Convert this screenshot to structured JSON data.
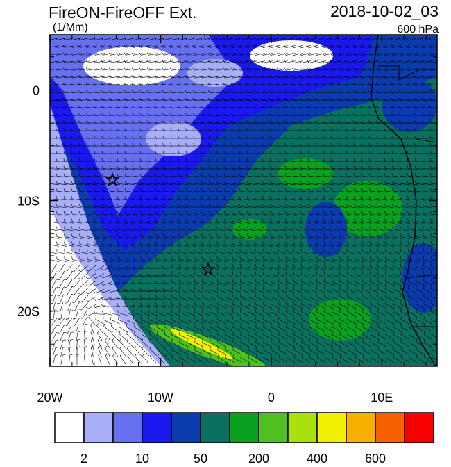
{
  "header": {
    "title": "FireON-FireOFF Ext.",
    "units": "(1/Mm)",
    "time": "2018-10-02_03",
    "level": "600 hPa"
  },
  "axes": {
    "xlim": [
      -20,
      15
    ],
    "ylim": [
      -25,
      5
    ],
    "xticks": [
      {
        "value": -20,
        "label": "20W"
      },
      {
        "value": -10,
        "label": "10W"
      },
      0,
      {
        "value": 10,
        "label": "10E"
      }
    ],
    "yticks": [
      0,
      {
        "value": -10,
        "label": "10S"
      },
      {
        "value": -20,
        "label": "20S"
      }
    ]
  },
  "colorbar": {
    "colors": [
      "#ffffff",
      "#a8aef8",
      "#6670f0",
      "#1a1aef",
      "#0a3cb0",
      "#0a7060",
      "#0aa020",
      "#50c020",
      "#a8e010",
      "#f0f000",
      "#f8b000",
      "#f86000",
      "#f80000"
    ],
    "labels": [
      2,
      10,
      50,
      200,
      400,
      600
    ]
  }
}
